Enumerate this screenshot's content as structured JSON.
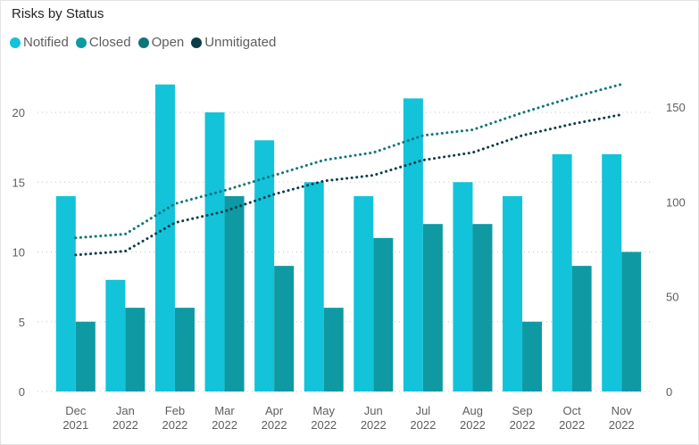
{
  "chart_data": {
    "type": "bar",
    "title": "Risks by Status",
    "categories": [
      [
        "Dec",
        "2021"
      ],
      [
        "Jan",
        "2022"
      ],
      [
        "Feb",
        "2022"
      ],
      [
        "Mar",
        "2022"
      ],
      [
        "Apr",
        "2022"
      ],
      [
        "May",
        "2022"
      ],
      [
        "Jun",
        "2022"
      ],
      [
        "Jul",
        "2022"
      ],
      [
        "Aug",
        "2022"
      ],
      [
        "Sep",
        "2022"
      ],
      [
        "Oct",
        "2022"
      ],
      [
        "Nov",
        "2022"
      ]
    ],
    "series": [
      {
        "name": "Notified",
        "kind": "bar",
        "axis": "left",
        "color": "#13c3d9",
        "values": [
          14,
          8,
          22,
          20,
          18,
          15,
          14,
          21,
          15,
          14,
          17,
          17
        ]
      },
      {
        "name": "Closed",
        "kind": "bar",
        "axis": "left",
        "color": "#0f9aa3",
        "values": [
          5,
          6,
          6,
          14,
          9,
          6,
          11,
          12,
          12,
          5,
          9,
          10
        ]
      },
      {
        "name": "Open",
        "kind": "line",
        "axis": "right",
        "color": "#107578",
        "values": [
          81,
          83,
          99,
          106,
          114,
          122,
          126,
          135,
          138,
          147,
          155,
          162
        ]
      },
      {
        "name": "Unmitigated",
        "kind": "line",
        "axis": "right",
        "color": "#0b3d49",
        "values": [
          72,
          74,
          89,
          95,
          104,
          111,
          114,
          122,
          126,
          135,
          141,
          146
        ]
      }
    ],
    "y_left": {
      "ylim": [
        0,
        23
      ],
      "ticks": [
        0,
        5,
        10,
        15,
        20
      ]
    },
    "y_right": {
      "ylim": [
        0,
        169
      ],
      "ticks": [
        0,
        50,
        100,
        150
      ]
    },
    "grid": true,
    "legend": "top-left"
  }
}
